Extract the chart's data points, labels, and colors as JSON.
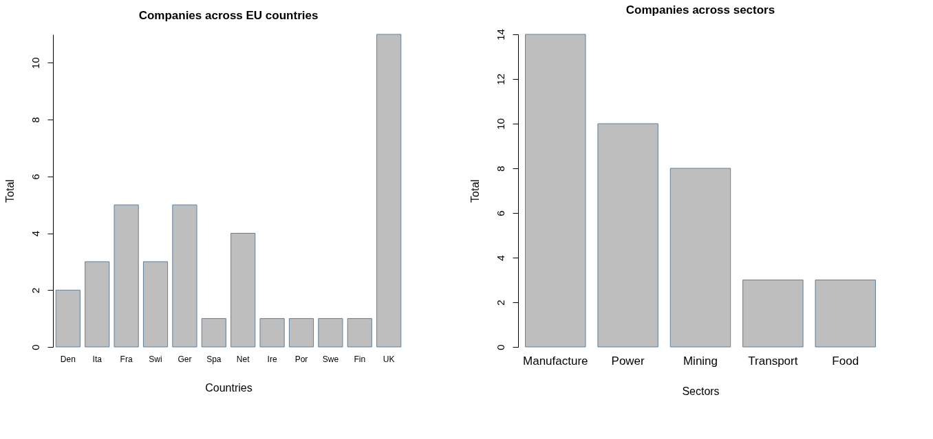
{
  "chart_data": [
    {
      "type": "bar",
      "title": "Companies across EU countries",
      "xlabel": "Countries",
      "ylabel": "Total",
      "categories": [
        "Den",
        "Ita",
        "Fra",
        "Swi",
        "Ger",
        "Spa",
        "Net",
        "Ire",
        "Por",
        "Swe",
        "Fin",
        "UK"
      ],
      "values": [
        2,
        3,
        5,
        3,
        5,
        1,
        4,
        1,
        1,
        1,
        1,
        11
      ],
      "color": "#bebebe",
      "ylim": [
        0,
        11
      ],
      "yticks": [
        0,
        2,
        4,
        6,
        8,
        10
      ],
      "grid": false
    },
    {
      "type": "bar",
      "title": "Companies across sectors",
      "xlabel": "Sectors",
      "ylabel": "Total",
      "categories": [
        "Manufacture",
        "Power",
        "Mining",
        "Transport",
        "Food"
      ],
      "values": [
        14,
        10,
        8,
        3,
        3
      ],
      "color": "#bebebe",
      "ylim": [
        0,
        14
      ],
      "yticks": [
        0,
        2,
        4,
        6,
        8,
        10,
        12,
        14
      ],
      "grid": false
    }
  ]
}
